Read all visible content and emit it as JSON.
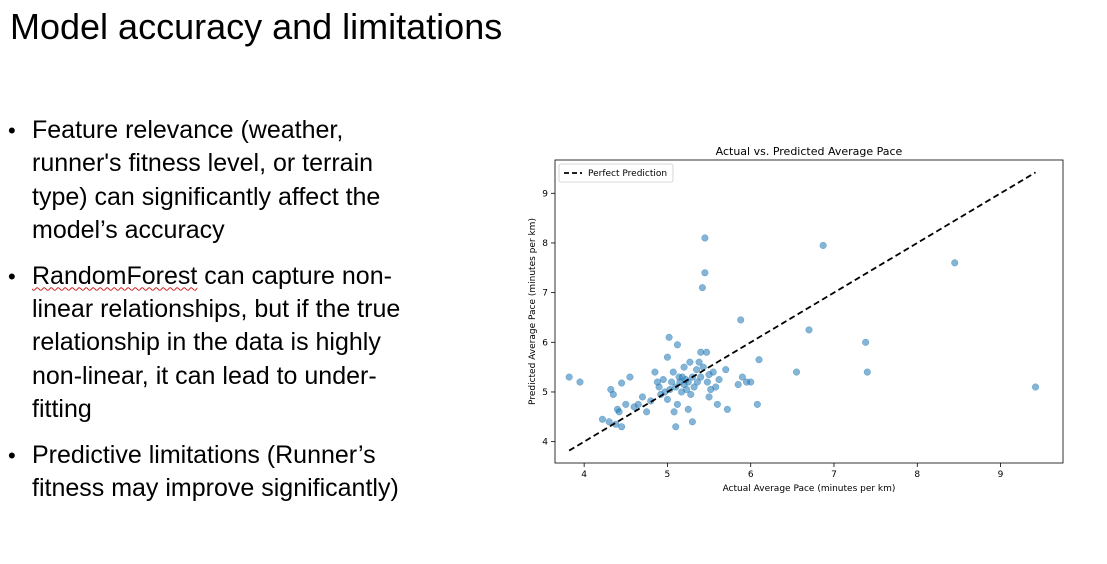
{
  "slide": {
    "title": "Model accuracy and limitations",
    "bullets": [
      {
        "highlight": "",
        "text": "Feature relevance (weather, runner's fitness level, or terrain type) can significantly affect the model’s accuracy"
      },
      {
        "highlight": "RandomForest",
        "text": " can capture non-linear relationships, but if the true relationship in the data is highly non-linear, it can lead to under-fitting"
      },
      {
        "highlight": "",
        "text": "Predictive limitations (Runner’s fitness may improve significantly)"
      }
    ]
  },
  "chart_data": {
    "type": "scatter",
    "title": "Actual vs. Predicted Average Pace",
    "xlabel": "Actual Average Pace (minutes per km)",
    "ylabel": "Predicted Average Pace (minutes per km)",
    "xlim": [
      3.65,
      9.75
    ],
    "ylim": [
      3.57,
      9.67
    ],
    "xticks": [
      4,
      5,
      6,
      7,
      8,
      9
    ],
    "yticks": [
      4,
      5,
      6,
      7,
      8,
      9
    ],
    "grid": false,
    "legend": {
      "position": "top-left",
      "entries": [
        "Perfect Prediction"
      ]
    },
    "colors": {
      "points": "#1f77b4",
      "line": "#000000"
    },
    "series": [
      {
        "name": "",
        "points": [
          [
            3.82,
            5.3
          ],
          [
            3.95,
            5.2
          ],
          [
            4.22,
            4.45
          ],
          [
            4.3,
            4.4
          ],
          [
            4.32,
            5.05
          ],
          [
            4.35,
            4.95
          ],
          [
            4.38,
            4.35
          ],
          [
            4.4,
            4.65
          ],
          [
            4.42,
            4.6
          ],
          [
            4.45,
            4.3
          ],
          [
            4.45,
            5.18
          ],
          [
            4.5,
            4.75
          ],
          [
            4.55,
            5.3
          ],
          [
            4.6,
            4.7
          ],
          [
            4.65,
            4.75
          ],
          [
            4.7,
            4.9
          ],
          [
            4.75,
            4.6
          ],
          [
            4.8,
            4.82
          ],
          [
            4.85,
            5.4
          ],
          [
            4.88,
            5.2
          ],
          [
            4.9,
            5.1
          ],
          [
            4.92,
            4.95
          ],
          [
            4.95,
            5.25
          ],
          [
            4.97,
            5.0
          ],
          [
            5.0,
            4.85
          ],
          [
            5.0,
            5.7
          ],
          [
            5.02,
            6.1
          ],
          [
            5.03,
            5.05
          ],
          [
            5.05,
            5.2
          ],
          [
            5.07,
            5.4
          ],
          [
            5.08,
            4.6
          ],
          [
            5.1,
            4.3
          ],
          [
            5.1,
            5.1
          ],
          [
            5.12,
            4.75
          ],
          [
            5.12,
            5.95
          ],
          [
            5.14,
            5.3
          ],
          [
            5.15,
            5.2
          ],
          [
            5.17,
            5.0
          ],
          [
            5.18,
            5.3
          ],
          [
            5.2,
            5.15
          ],
          [
            5.2,
            5.5
          ],
          [
            5.22,
            5.25
          ],
          [
            5.23,
            5.05
          ],
          [
            5.25,
            4.65
          ],
          [
            5.25,
            5.2
          ],
          [
            5.27,
            5.6
          ],
          [
            5.28,
            4.95
          ],
          [
            5.3,
            5.3
          ],
          [
            5.3,
            4.4
          ],
          [
            5.32,
            5.1
          ],
          [
            5.35,
            5.45
          ],
          [
            5.36,
            5.2
          ],
          [
            5.38,
            5.6
          ],
          [
            5.4,
            5.3
          ],
          [
            5.4,
            5.8
          ],
          [
            5.42,
            7.1
          ],
          [
            5.43,
            5.5
          ],
          [
            5.45,
            8.1
          ],
          [
            5.45,
            7.4
          ],
          [
            5.47,
            5.8
          ],
          [
            5.48,
            5.2
          ],
          [
            5.5,
            5.35
          ],
          [
            5.5,
            4.9
          ],
          [
            5.52,
            5.05
          ],
          [
            5.55,
            5.4
          ],
          [
            5.58,
            5.1
          ],
          [
            5.6,
            4.75
          ],
          [
            5.62,
            5.25
          ],
          [
            5.7,
            5.45
          ],
          [
            5.72,
            4.65
          ],
          [
            5.85,
            5.15
          ],
          [
            5.88,
            6.45
          ],
          [
            5.9,
            5.3
          ],
          [
            5.95,
            5.2
          ],
          [
            6.0,
            5.2
          ],
          [
            6.08,
            4.75
          ],
          [
            6.1,
            5.65
          ],
          [
            6.55,
            5.4
          ],
          [
            6.7,
            6.25
          ],
          [
            6.87,
            7.95
          ],
          [
            7.38,
            6.0
          ],
          [
            7.4,
            5.4
          ],
          [
            8.45,
            7.6
          ],
          [
            9.42,
            5.1
          ]
        ]
      },
      {
        "name": "Perfect Prediction",
        "line": [
          [
            3.82,
            3.82
          ],
          [
            9.42,
            9.42
          ]
        ]
      }
    ]
  }
}
